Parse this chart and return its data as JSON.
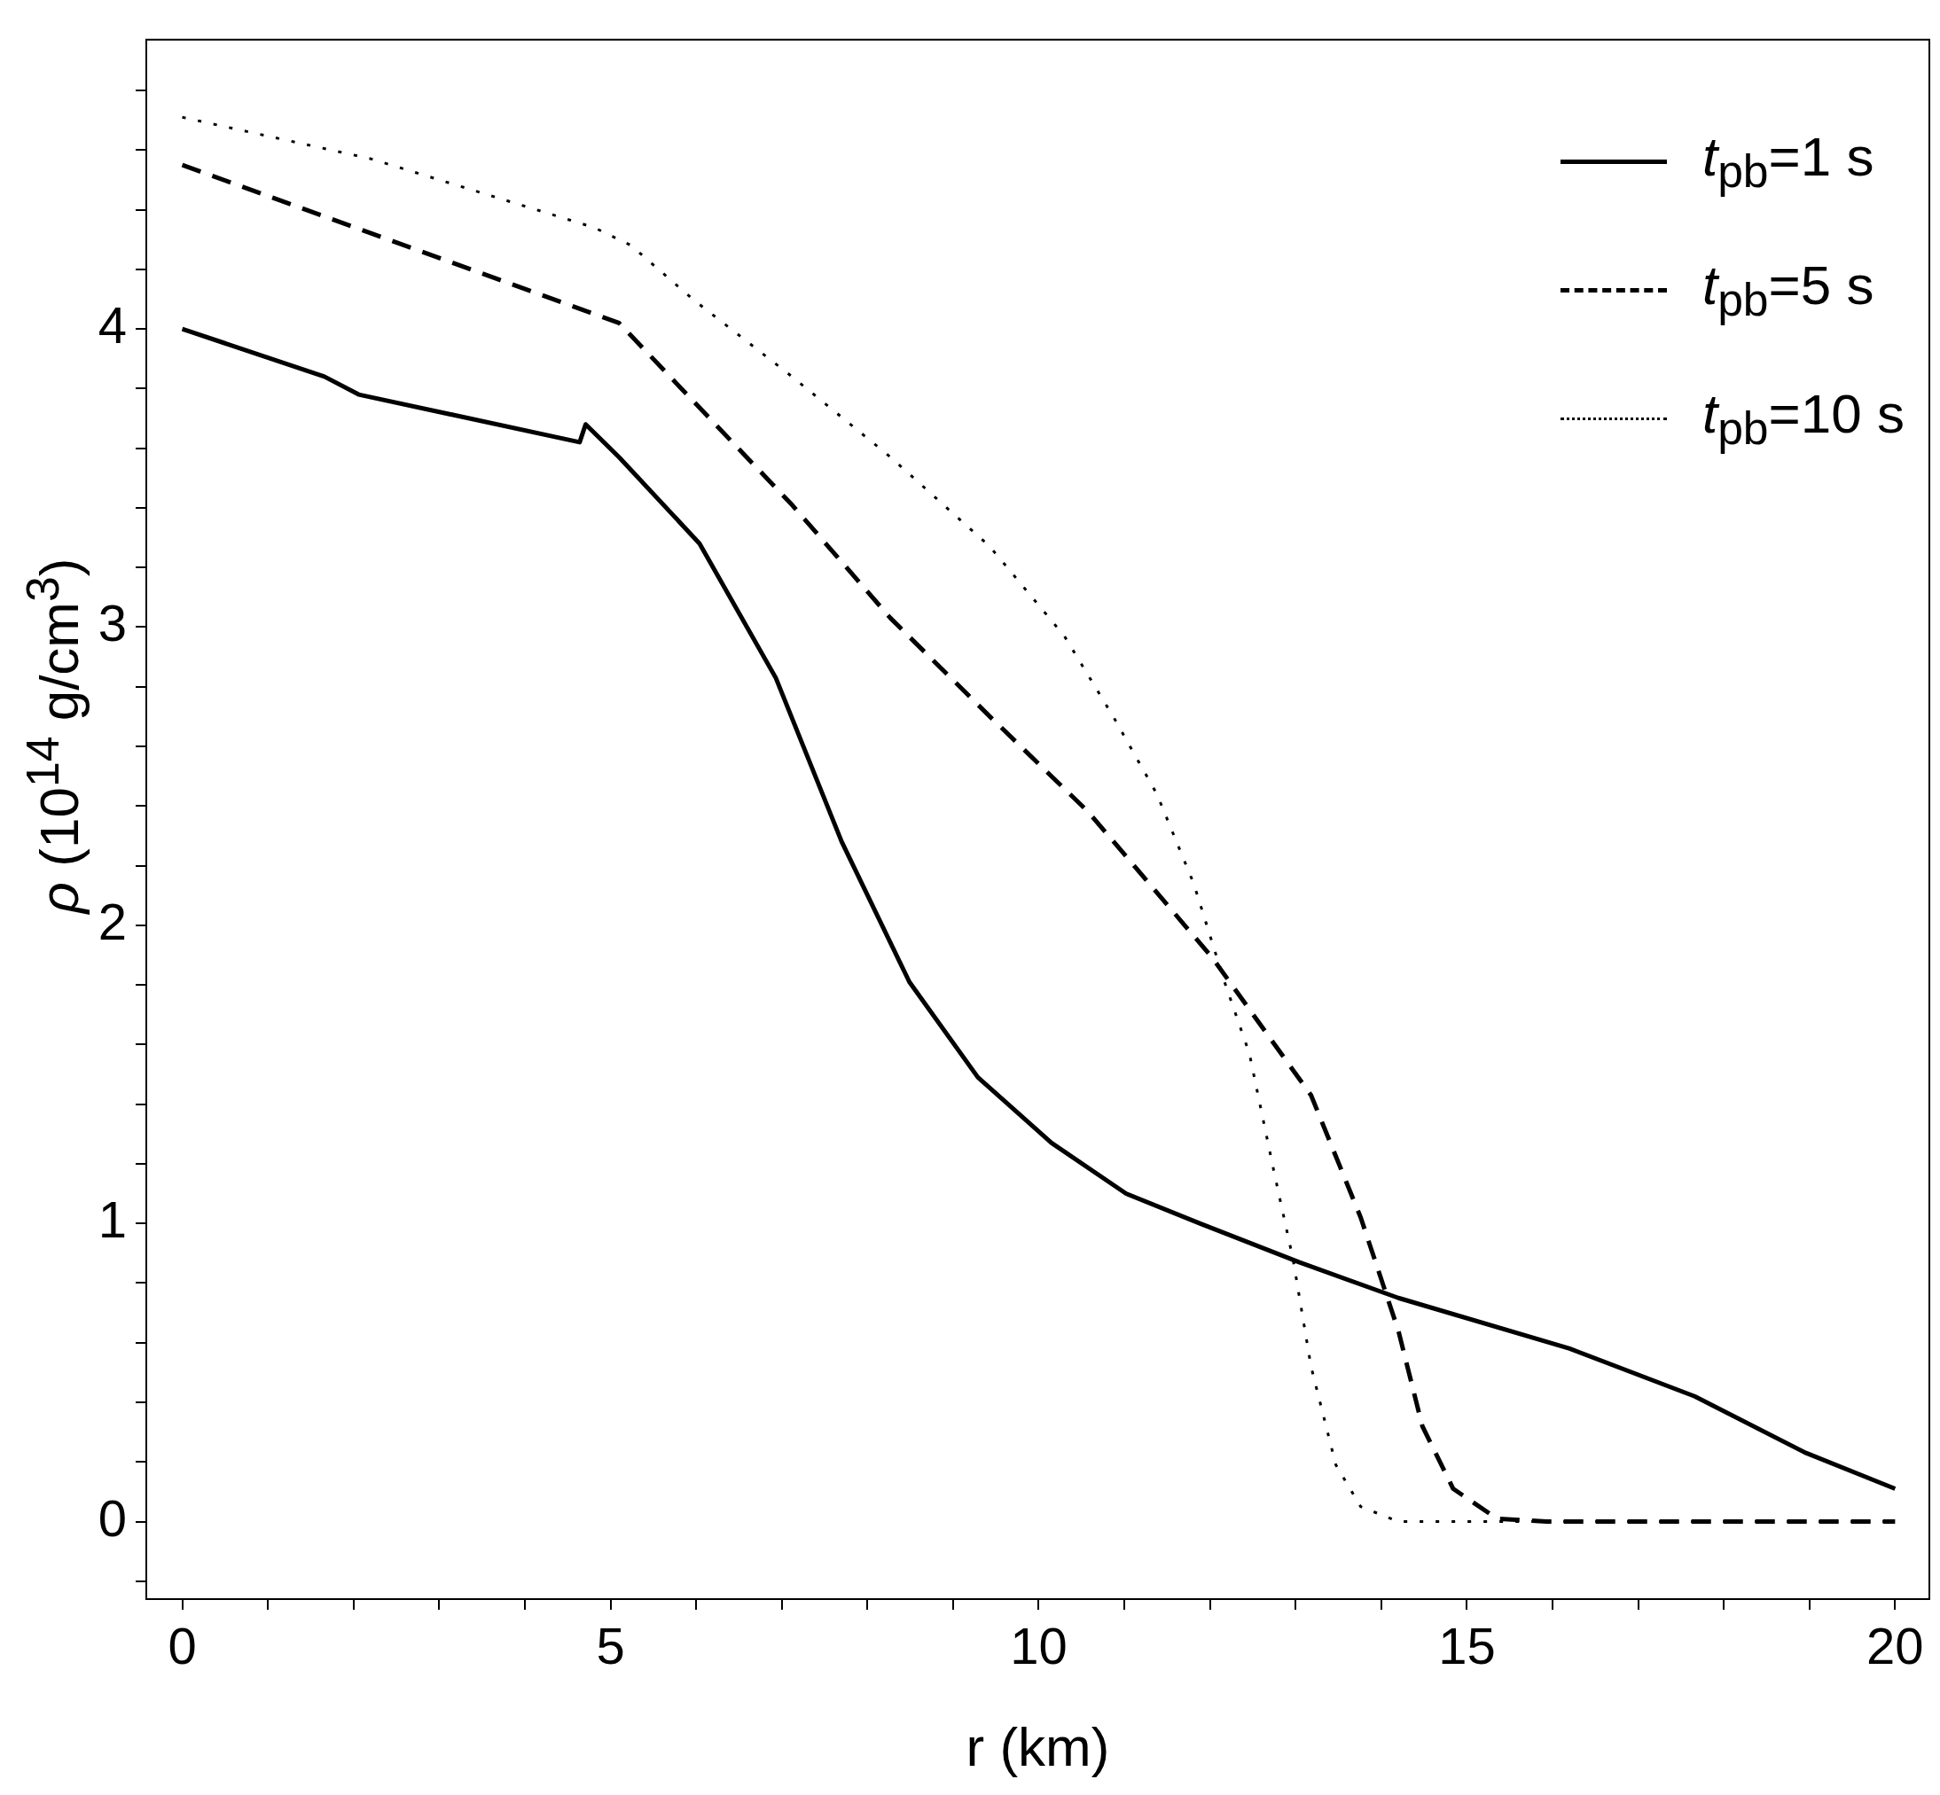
{
  "chart_data": {
    "type": "line",
    "xlabel": "r (km)",
    "ylabel": "ρ (10$^{14}$ g/cm$^{3}$)",
    "legend": "top right",
    "grid": false,
    "marker": "none",
    "xlim": [
      -0.42,
      20.4
    ],
    "ylim": [
      -0.26,
      4.97
    ],
    "xticks": [
      0,
      {
        "value": 1,
        "label": null
      },
      {
        "value": 2,
        "label": null
      },
      {
        "value": 3,
        "label": null
      },
      {
        "value": 4,
        "label": null
      },
      5,
      {
        "value": 6,
        "label": null
      },
      {
        "value": 7,
        "label": null
      },
      {
        "value": 8,
        "label": null
      },
      {
        "value": 9,
        "label": null
      },
      10,
      {
        "value": 11,
        "label": null
      },
      {
        "value": 12,
        "label": null
      },
      {
        "value": 13,
        "label": null
      },
      {
        "value": 14,
        "label": null
      },
      15,
      {
        "value": 16,
        "label": null
      },
      {
        "value": 17,
        "label": null
      },
      {
        "value": 18,
        "label": null
      },
      {
        "value": 19,
        "label": null
      },
      20
    ],
    "yticks": [
      {
        "value": -0.2,
        "label": null
      },
      0,
      {
        "value": 0.2,
        "label": null
      },
      {
        "value": 0.4,
        "label": null
      },
      {
        "value": 0.6,
        "label": null
      },
      {
        "value": 0.8,
        "label": null
      },
      1,
      {
        "value": 1.2,
        "label": null
      },
      {
        "value": 1.4,
        "label": null
      },
      {
        "value": 1.6,
        "label": null
      },
      {
        "value": 1.8,
        "label": null
      },
      2,
      {
        "value": 2.2,
        "label": null
      },
      {
        "value": 2.4,
        "label": null
      },
      {
        "value": 2.6,
        "label": null
      },
      {
        "value": 2.8,
        "label": null
      },
      3,
      {
        "value": 3.2,
        "label": null
      },
      {
        "value": 3.4,
        "label": null
      },
      {
        "value": 3.6,
        "label": null
      },
      {
        "value": 3.8,
        "label": null
      },
      4,
      {
        "value": 4.2,
        "label": null
      },
      {
        "value": 4.4,
        "label": null
      },
      {
        "value": 4.6,
        "label": null
      },
      {
        "value": 4.8,
        "label": null
      }
    ],
    "series": [
      {
        "name": "t$_{pb}$=1 s",
        "color": "#000000",
        "line_style": "solid",
        "x": [
          0,
          1.66,
          2.06,
          4.64,
          4.71,
          5.1,
          6.04,
          6.93,
          7.7,
          8.49,
          9.29,
          10.15,
          11.02,
          11.88,
          13.04,
          14.2,
          16.2,
          17.66,
          18.96,
          20
        ],
        "values": [
          4.0,
          3.84,
          3.78,
          3.62,
          3.68,
          3.57,
          3.28,
          2.83,
          2.28,
          1.81,
          1.49,
          1.27,
          1.1,
          1.0,
          0.87,
          0.75,
          0.58,
          0.42,
          0.23,
          0.11
        ]
      },
      {
        "name": "t$_{pb}$=5 s",
        "color": "#000000",
        "line_style": "dashed",
        "x": [
          0,
          2.21,
          5.1,
          5.96,
          7.12,
          8.27,
          9.43,
          10.58,
          12.03,
          12.68,
          13.18,
          13.76,
          14.2,
          14.48,
          14.84,
          15.35,
          15.93,
          20
        ],
        "values": [
          4.55,
          4.32,
          4.02,
          3.76,
          3.41,
          3.03,
          2.7,
          2.38,
          1.89,
          1.63,
          1.43,
          1.02,
          0.64,
          0.32,
          0.11,
          0.01,
          0,
          0
        ]
      },
      {
        "name": "t$_{pb}$=10 s",
        "color": "#000000",
        "line_style": "dotted",
        "x": [
          0,
          2.21,
          4.81,
          5.24,
          5.96,
          7.12,
          8.27,
          9.43,
          10.3,
          10.87,
          11.38,
          11.81,
          12.17,
          12.46,
          12.75,
          12.97,
          13.18,
          13.47,
          13.76,
          14.2,
          20
        ],
        "values": [
          4.71,
          4.57,
          4.34,
          4.28,
          4.1,
          3.84,
          3.57,
          3.27,
          2.97,
          2.7,
          2.44,
          2.14,
          1.81,
          1.57,
          1.17,
          0.88,
          0.52,
          0.19,
          0.05,
          0,
          0
        ]
      }
    ]
  }
}
